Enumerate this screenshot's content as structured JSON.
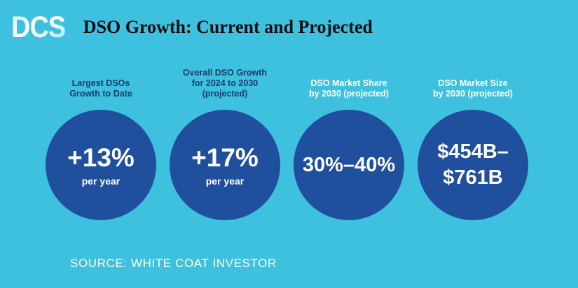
{
  "header": {
    "logo_text": "DCS",
    "title": "DSO Growth: Current and Projected"
  },
  "stats": [
    {
      "label": "Largest DSOs\nGrowth to Date",
      "label_color": "#173D6A",
      "value": "+13%",
      "unit": "per year"
    },
    {
      "label": "Overall DSO Growth\nfor 2024 to 2030\n(projected)",
      "label_color": "#173D6A",
      "value": "+17%",
      "unit": "per year"
    },
    {
      "label": "DSO Market Share\nby 2030 (projected)",
      "label_color": "#FFFFFF",
      "value": "30%–40%"
    },
    {
      "label": "DSO Market Size\nby 2030 (projected)",
      "label_color": "#FFFFFF",
      "value": "$454B–\n$761B"
    }
  ],
  "footer": {
    "source": "SOURCE: WHITE COAT INVESTOR"
  },
  "colors": {
    "background": "#3EC1DE",
    "circle": "#1F4F9D",
    "title_text": "#0D0D14",
    "circle_text": "#FFFFFF",
    "label_navy": "#173D6A",
    "label_white": "#FFFFFF"
  },
  "chart_data": {
    "type": "table",
    "title": "DSO Growth: Current and Projected",
    "categories": [
      "Largest DSOs Growth to Date",
      "Overall DSO Growth for 2024 to 2030 (projected)",
      "DSO Market Share by 2030 (projected)",
      "DSO Market Size by 2030 (projected)"
    ],
    "values": [
      "+13% per year",
      "+17% per year",
      "30%–40%",
      "$454B–$761B"
    ],
    "source": "SOURCE: WHITE COAT INVESTOR",
    "legend_position": "none",
    "grid": false
  }
}
